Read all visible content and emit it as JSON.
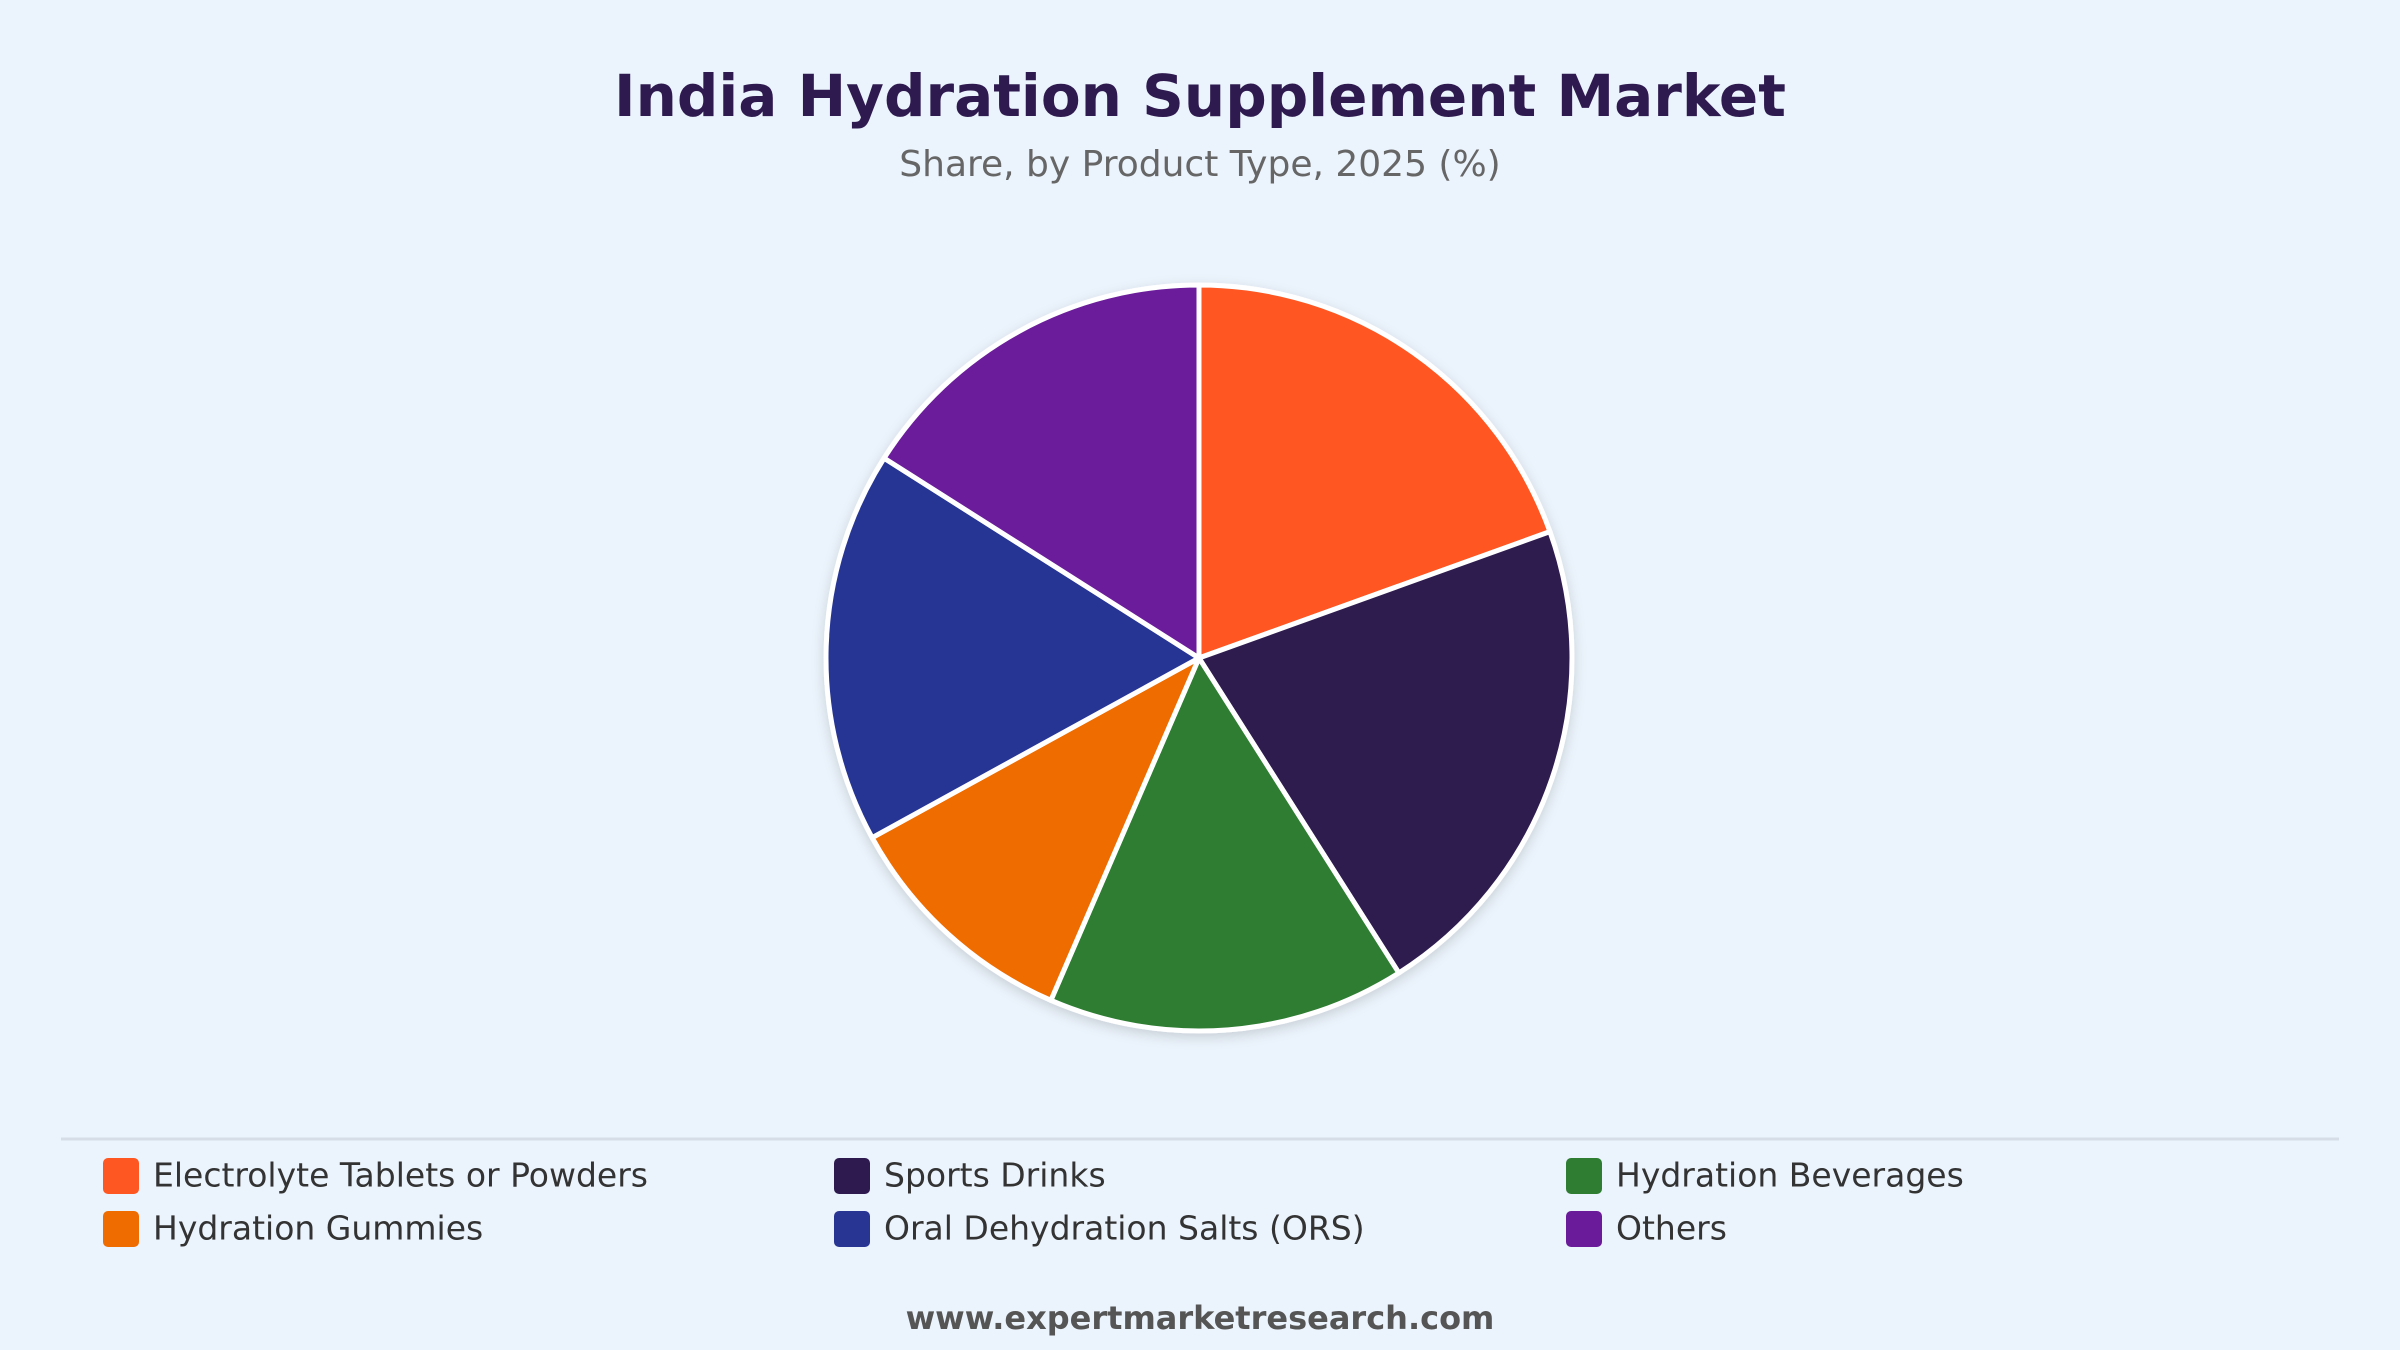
{
  "chart_data": {
    "type": "pie",
    "title": "India Hydration Supplement Market",
    "subtitle": "Share, by Product Type, 2025 (%)",
    "categories": [
      "Electrolyte Tablets or Powders",
      "Sports Drinks",
      "Hydration Beverages",
      "Hydration Gummies",
      "Oral Dehydration Salts (ORS)",
      "Others"
    ],
    "values": [
      19.5,
      21.5,
      15.5,
      10.5,
      17,
      16
    ],
    "colors": [
      "#ff5722",
      "#2e1a4f",
      "#2e7d32",
      "#ef6c00",
      "#283593",
      "#6a1b9a"
    ],
    "legend": "bottom",
    "footer": "www.expertmarketresearch.com"
  }
}
